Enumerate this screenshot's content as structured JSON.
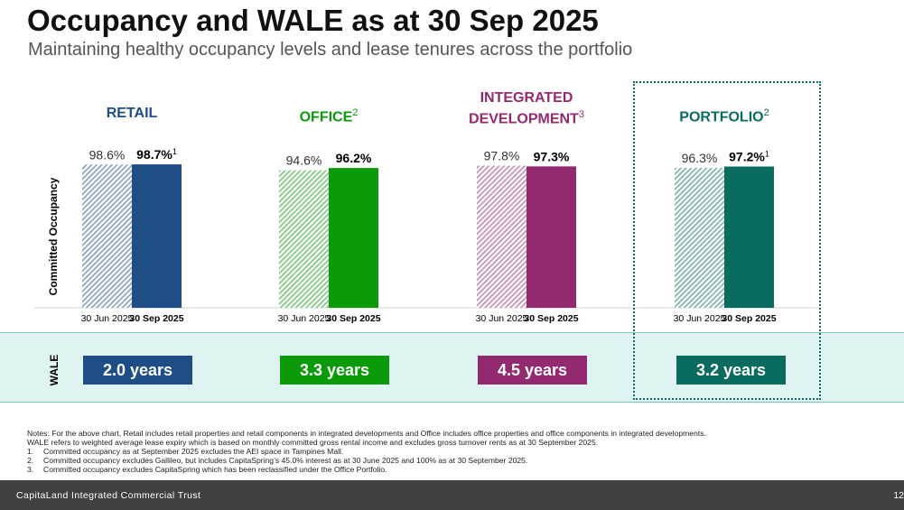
{
  "title": "Occupancy and WALE as at 30 Sep 2025",
  "subtitle": "Maintaining healthy occupancy levels and lease tenures across the portfolio",
  "colors": {
    "retail": "#1f4e86",
    "office": "#0a9a0a",
    "integrated": "#932a6f",
    "portfolio": "#0a6b5f"
  },
  "chart_data": {
    "type": "bar",
    "ylabel": "Committed Occupancy",
    "period_labels": [
      "30 Jun 2025",
      "30 Sep 2025"
    ],
    "ylim": [
      0,
      100
    ],
    "groups": [
      {
        "key": "retail",
        "label": "RETAIL",
        "label_lines": [
          "RETAIL"
        ],
        "sup": "",
        "color": "#1f4e86",
        "values": [
          98.6,
          98.7
        ],
        "value_labels": [
          "98.6%",
          "98.7%"
        ],
        "value_sups": [
          "",
          "1"
        ]
      },
      {
        "key": "office",
        "label": "OFFICE",
        "label_lines": [
          "OFFICE"
        ],
        "sup": "2",
        "color": "#0a9a0a",
        "values": [
          94.6,
          96.2
        ],
        "value_labels": [
          "94.6%",
          "96.2%"
        ],
        "value_sups": [
          "",
          ""
        ]
      },
      {
        "key": "integrated",
        "label": "INTEGRATED DEVELOPMENT",
        "label_lines": [
          "INTEGRATED",
          "DEVELOPMENT"
        ],
        "sup": "3",
        "color": "#932a6f",
        "values": [
          97.8,
          97.3
        ],
        "value_labels": [
          "97.8%",
          "97.3%"
        ],
        "value_sups": [
          "",
          ""
        ]
      },
      {
        "key": "portfolio",
        "label": "PORTFOLIO",
        "label_lines": [
          "PORTFOLIO"
        ],
        "sup": "2",
        "color": "#0a6b5f",
        "values": [
          96.3,
          97.2
        ],
        "value_labels": [
          "96.3%",
          "97.2%"
        ],
        "value_sups": [
          "",
          "1"
        ]
      }
    ]
  },
  "wale": {
    "label": "WALE",
    "items": [
      {
        "key": "retail",
        "value": "2.0 years"
      },
      {
        "key": "office",
        "value": "3.3 years"
      },
      {
        "key": "integrated",
        "value": "4.5 years"
      },
      {
        "key": "portfolio",
        "value": "3.2 years"
      }
    ]
  },
  "notes": [
    {
      "num": "",
      "text": "Notes: For the above chart, Retail includes retail properties and retail components in integrated developments and Office includes office properties and office components in integrated developments."
    },
    {
      "num": "",
      "text": "WALE refers to weighted average lease expiry which is based on monthly committed gross rental income and excludes gross turnover rents as at 30 September 2025."
    },
    {
      "num": "1.",
      "text": "Committed occupancy as at September 2025 excludes the AEI space in Tampines Mall."
    },
    {
      "num": "2.",
      "text": "Committed occupancy excludes Gallileo, but includes CapitaSpring’s 45.0% interest as at 30 June 2025 and 100% as at 30 September 2025."
    },
    {
      "num": "3.",
      "text": "Committed occupancy excludes CapitaSpring which has been reclassified under the Office Portfolio."
    }
  ],
  "footer": {
    "company": "CapitaLand Integrated Commercial Trust",
    "page": "12"
  }
}
